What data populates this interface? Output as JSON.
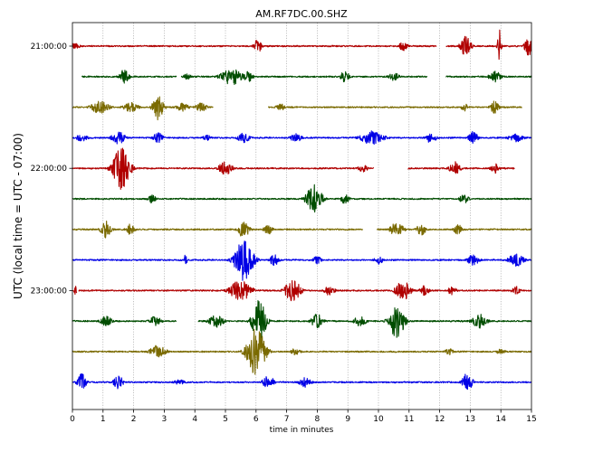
{
  "chart_data": {
    "type": "line",
    "title": "AM.RF7DC.00.SHZ",
    "xlabel": "time in minutes",
    "ylabel": "UTC (local time = UTC - 07:00)",
    "xlim": [
      0,
      15
    ],
    "x_ticks": [
      0,
      1,
      2,
      3,
      4,
      5,
      6,
      7,
      8,
      9,
      10,
      11,
      12,
      13,
      14,
      15
    ],
    "x_tick_labels": [
      "0",
      "1",
      "2",
      "3",
      "4",
      "5",
      "6",
      "7",
      "8",
      "9",
      "10",
      "11",
      "12",
      "13",
      "14",
      "15"
    ],
    "y_ticks": [
      {
        "row": 0,
        "label": "21:00:00"
      },
      {
        "row": 4,
        "label": "22:00:00"
      },
      {
        "row": 8,
        "label": "23:00:00"
      }
    ],
    "grid": "vertical dotted at each minute",
    "colors": [
      "#b00000",
      "#004d00",
      "#7a6a00",
      "#0000e6"
    ],
    "rows": [
      {
        "color_index": 0,
        "gaps": [
          [
            11.9,
            12.2
          ]
        ],
        "events": [
          {
            "t": 0.1,
            "amp": 0.25,
            "dur": 0.3
          },
          {
            "t": 6.05,
            "amp": 0.55,
            "dur": 0.25
          },
          {
            "t": 10.8,
            "amp": 0.35,
            "dur": 0.3
          },
          {
            "t": 12.85,
            "amp": 0.7,
            "dur": 0.35
          },
          {
            "t": 13.95,
            "amp": 1.2,
            "dur": 0.12
          },
          {
            "t": 14.9,
            "amp": 0.7,
            "dur": 0.25
          }
        ]
      },
      {
        "color_index": 1,
        "gaps": [
          [
            0,
            0.3
          ],
          [
            3.4,
            3.55
          ],
          [
            11.6,
            12.2
          ]
        ],
        "events": [
          {
            "t": 1.7,
            "amp": 0.55,
            "dur": 0.3
          },
          {
            "t": 3.75,
            "amp": 0.2,
            "dur": 0.3
          },
          {
            "t": 5.2,
            "amp": 0.6,
            "dur": 0.7
          },
          {
            "t": 5.75,
            "amp": 0.4,
            "dur": 0.3
          },
          {
            "t": 8.9,
            "amp": 0.4,
            "dur": 0.3
          },
          {
            "t": 10.5,
            "amp": 0.3,
            "dur": 0.35
          },
          {
            "t": 13.8,
            "amp": 0.4,
            "dur": 0.4
          }
        ]
      },
      {
        "color_index": 2,
        "gaps": [
          [
            4.6,
            6.4
          ],
          [
            14.7,
            15
          ]
        ],
        "events": [
          {
            "t": 0.9,
            "amp": 0.45,
            "dur": 0.6
          },
          {
            "t": 1.9,
            "amp": 0.35,
            "dur": 0.5
          },
          {
            "t": 2.8,
            "amp": 0.9,
            "dur": 0.35
          },
          {
            "t": 3.6,
            "amp": 0.3,
            "dur": 0.4
          },
          {
            "t": 4.2,
            "amp": 0.3,
            "dur": 0.4
          },
          {
            "t": 6.8,
            "amp": 0.25,
            "dur": 0.3
          },
          {
            "t": 12.8,
            "amp": 0.3,
            "dur": 0.25
          },
          {
            "t": 13.8,
            "amp": 0.45,
            "dur": 0.3
          }
        ]
      },
      {
        "color_index": 3,
        "gaps": [],
        "events": [
          {
            "t": 0.3,
            "amp": 0.25,
            "dur": 0.4
          },
          {
            "t": 1.5,
            "amp": 0.45,
            "dur": 0.45
          },
          {
            "t": 2.8,
            "amp": 0.35,
            "dur": 0.35
          },
          {
            "t": 4.4,
            "amp": 0.2,
            "dur": 0.3
          },
          {
            "t": 5.6,
            "amp": 0.35,
            "dur": 0.4
          },
          {
            "t": 7.3,
            "amp": 0.3,
            "dur": 0.4
          },
          {
            "t": 9.8,
            "amp": 0.5,
            "dur": 0.8
          },
          {
            "t": 11.7,
            "amp": 0.35,
            "dur": 0.4
          },
          {
            "t": 13.1,
            "amp": 0.45,
            "dur": 0.3
          },
          {
            "t": 14.5,
            "amp": 0.3,
            "dur": 0.5
          }
        ]
      },
      {
        "color_index": 0,
        "gaps": [
          [
            9.85,
            10.95
          ],
          [
            14.45,
            15
          ]
        ],
        "events": [
          {
            "t": 1.6,
            "amp": 1.5,
            "dur": 0.55
          },
          {
            "t": 5.0,
            "amp": 0.5,
            "dur": 0.45
          },
          {
            "t": 9.5,
            "amp": 0.25,
            "dur": 0.35
          },
          {
            "t": 12.5,
            "amp": 0.5,
            "dur": 0.35
          },
          {
            "t": 13.8,
            "amp": 0.35,
            "dur": 0.3
          }
        ]
      },
      {
        "color_index": 1,
        "gaps": [],
        "events": [
          {
            "t": 2.6,
            "amp": 0.3,
            "dur": 0.3
          },
          {
            "t": 7.9,
            "amp": 1.1,
            "dur": 0.5
          },
          {
            "t": 8.9,
            "amp": 0.35,
            "dur": 0.3
          },
          {
            "t": 12.8,
            "amp": 0.35,
            "dur": 0.3
          }
        ]
      },
      {
        "color_index": 2,
        "gaps": [
          [
            9.5,
            9.95
          ]
        ],
        "events": [
          {
            "t": 1.1,
            "amp": 0.6,
            "dur": 0.35
          },
          {
            "t": 1.9,
            "amp": 0.4,
            "dur": 0.3
          },
          {
            "t": 5.6,
            "amp": 0.75,
            "dur": 0.35
          },
          {
            "t": 6.4,
            "amp": 0.35,
            "dur": 0.3
          },
          {
            "t": 10.6,
            "amp": 0.5,
            "dur": 0.45
          },
          {
            "t": 11.4,
            "amp": 0.4,
            "dur": 0.35
          },
          {
            "t": 12.6,
            "amp": 0.35,
            "dur": 0.3
          }
        ]
      },
      {
        "color_index": 3,
        "gaps": [],
        "events": [
          {
            "t": 3.7,
            "amp": 0.5,
            "dur": 0.08
          },
          {
            "t": 5.6,
            "amp": 1.45,
            "dur": 0.6
          },
          {
            "t": 6.6,
            "amp": 0.45,
            "dur": 0.3
          },
          {
            "t": 8.0,
            "amp": 0.3,
            "dur": 0.3
          },
          {
            "t": 10.0,
            "amp": 0.3,
            "dur": 0.3
          },
          {
            "t": 13.1,
            "amp": 0.4,
            "dur": 0.4
          },
          {
            "t": 14.5,
            "amp": 0.45,
            "dur": 0.5
          }
        ]
      },
      {
        "color_index": 0,
        "gaps": [
          [
            0.15,
            0.2
          ]
        ],
        "events": [
          {
            "t": 0.1,
            "amp": 0.3,
            "dur": 0.1
          },
          {
            "t": 5.5,
            "amp": 0.75,
            "dur": 0.7
          },
          {
            "t": 7.2,
            "amp": 0.8,
            "dur": 0.5
          },
          {
            "t": 8.4,
            "amp": 0.35,
            "dur": 0.35
          },
          {
            "t": 10.8,
            "amp": 0.7,
            "dur": 0.5
          },
          {
            "t": 11.5,
            "amp": 0.35,
            "dur": 0.3
          },
          {
            "t": 12.4,
            "amp": 0.3,
            "dur": 0.3
          },
          {
            "t": 14.5,
            "amp": 0.3,
            "dur": 0.3
          }
        ]
      },
      {
        "color_index": 1,
        "gaps": [
          [
            3.4,
            4.1
          ]
        ],
        "events": [
          {
            "t": 1.1,
            "amp": 0.35,
            "dur": 0.4
          },
          {
            "t": 2.7,
            "amp": 0.35,
            "dur": 0.4
          },
          {
            "t": 4.7,
            "amp": 0.45,
            "dur": 0.5
          },
          {
            "t": 6.1,
            "amp": 1.5,
            "dur": 0.45
          },
          {
            "t": 8.0,
            "amp": 0.5,
            "dur": 0.4
          },
          {
            "t": 9.4,
            "amp": 0.35,
            "dur": 0.45
          },
          {
            "t": 10.6,
            "amp": 1.2,
            "dur": 0.5
          },
          {
            "t": 13.3,
            "amp": 0.5,
            "dur": 0.5
          }
        ]
      },
      {
        "color_index": 2,
        "gaps": [],
        "events": [
          {
            "t": 2.8,
            "amp": 0.55,
            "dur": 0.5
          },
          {
            "t": 6.0,
            "amp": 1.7,
            "dur": 0.6
          },
          {
            "t": 7.3,
            "amp": 0.25,
            "dur": 0.35
          },
          {
            "t": 12.3,
            "amp": 0.25,
            "dur": 0.3
          },
          {
            "t": 14.0,
            "amp": 0.2,
            "dur": 0.3
          }
        ]
      },
      {
        "color_index": 3,
        "gaps": [],
        "events": [
          {
            "t": 0.3,
            "amp": 0.6,
            "dur": 0.3
          },
          {
            "t": 1.5,
            "amp": 0.55,
            "dur": 0.3
          },
          {
            "t": 3.5,
            "amp": 0.2,
            "dur": 0.4
          },
          {
            "t": 6.4,
            "amp": 0.45,
            "dur": 0.4
          },
          {
            "t": 7.6,
            "amp": 0.35,
            "dur": 0.4
          },
          {
            "t": 12.9,
            "amp": 0.7,
            "dur": 0.35
          }
        ]
      }
    ]
  }
}
